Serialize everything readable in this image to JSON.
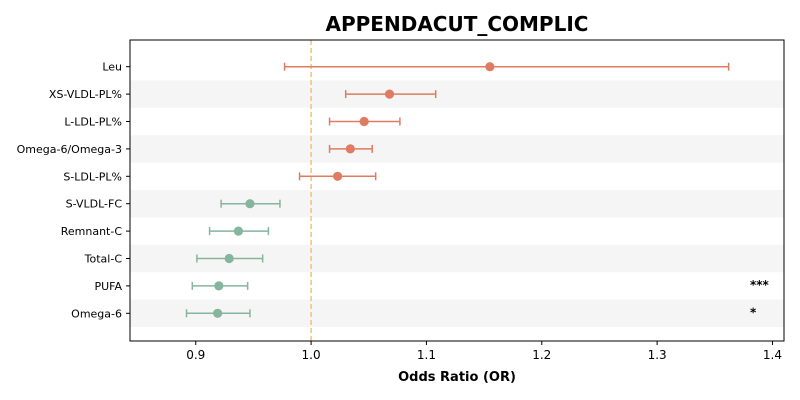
{
  "chart_data": {
    "type": "forest",
    "title": "APPENDACUT_COMPLIC",
    "xlabel": "Odds Ratio (OR)",
    "ylabel": "",
    "xlim": [
      0.843,
      1.41
    ],
    "xticks": [
      0.9,
      1.0,
      1.1,
      1.2,
      1.3,
      1.4
    ],
    "xtick_labels": [
      "0.9",
      "1.0",
      "1.1",
      "1.2",
      "1.3",
      "1.4"
    ],
    "reference_line": 1.0,
    "grid": false,
    "alternating_row_shading": true,
    "colors": {
      "positive": "#e07b62",
      "negative": "#86b59e",
      "reference": "#f5c07a",
      "shade": "#f5f5f5"
    },
    "rows": [
      {
        "label": "Leu",
        "or": 1.155,
        "lower": 0.977,
        "upper": 1.362,
        "direction": "positive",
        "significance": ""
      },
      {
        "label": "XS-VLDL-PL%",
        "or": 1.068,
        "lower": 1.03,
        "upper": 1.108,
        "direction": "positive",
        "significance": ""
      },
      {
        "label": "L-LDL-PL%",
        "or": 1.046,
        "lower": 1.016,
        "upper": 1.077,
        "direction": "positive",
        "significance": ""
      },
      {
        "label": "Omega-6/Omega-3",
        "or": 1.034,
        "lower": 1.016,
        "upper": 1.053,
        "direction": "positive",
        "significance": ""
      },
      {
        "label": "S-LDL-PL%",
        "or": 1.023,
        "lower": 0.99,
        "upper": 1.056,
        "direction": "positive",
        "significance": ""
      },
      {
        "label": "S-VLDL-FC",
        "or": 0.947,
        "lower": 0.922,
        "upper": 0.973,
        "direction": "negative",
        "significance": ""
      },
      {
        "label": "Remnant-C",
        "or": 0.937,
        "lower": 0.912,
        "upper": 0.963,
        "direction": "negative",
        "significance": ""
      },
      {
        "label": "Total-C",
        "or": 0.929,
        "lower": 0.901,
        "upper": 0.958,
        "direction": "negative",
        "significance": ""
      },
      {
        "label": "PUFA",
        "or": 0.92,
        "lower": 0.897,
        "upper": 0.945,
        "direction": "negative",
        "significance": "***"
      },
      {
        "label": "Omega-6",
        "or": 0.919,
        "lower": 0.892,
        "upper": 0.947,
        "direction": "negative",
        "significance": "*"
      }
    ]
  }
}
